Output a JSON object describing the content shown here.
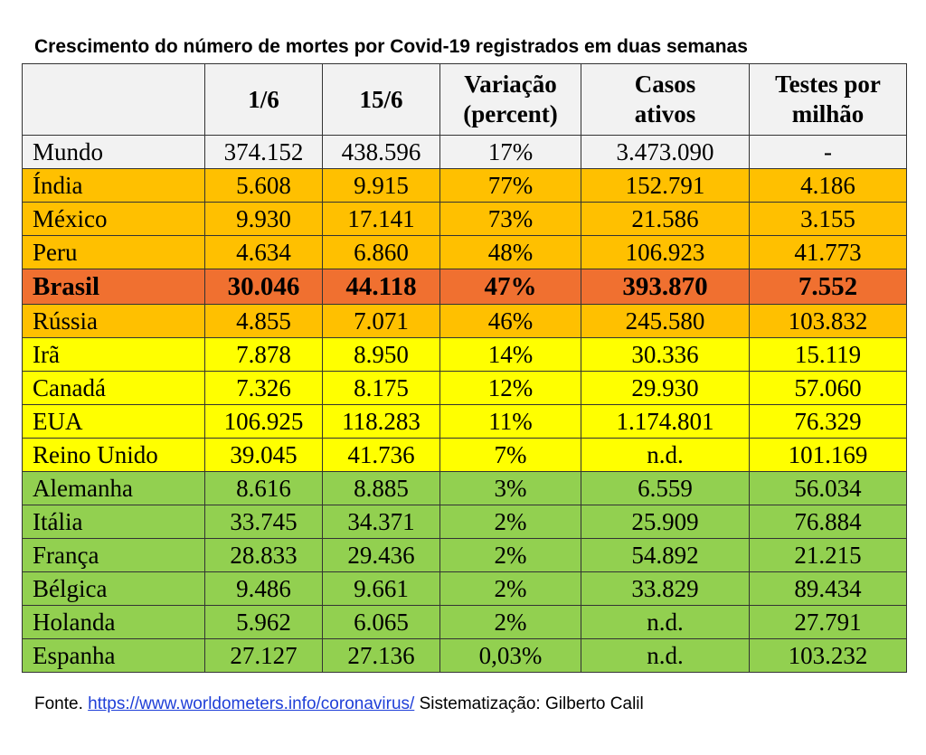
{
  "title": "Crescimento do número de mortes por Covid-19 registrados em duas semanas",
  "colors": {
    "header": "#f2f2f2",
    "world": "#f2f2f2",
    "orange": "#ffc000",
    "highlight": "#f07030",
    "yellow": "#ffff00",
    "green": "#92d050"
  },
  "header": {
    "country": "",
    "d1": "1/6",
    "d15": "15/6",
    "var_line1": "Variação",
    "var_line2": "(percent)",
    "cases_line1": "Casos",
    "cases_line2": "ativos",
    "tests_line1": "Testes por",
    "tests_line2": "milhão"
  },
  "rows": [
    {
      "country": "Mundo",
      "d1": "374.152",
      "d15": "438.596",
      "var": "17%",
      "cases": "3.473.090",
      "tests": "-",
      "color": "world",
      "bold": false
    },
    {
      "country": "Índia",
      "d1": "5.608",
      "d15": "9.915",
      "var": "77%",
      "cases": "152.791",
      "tests": "4.186",
      "color": "orange",
      "bold": false
    },
    {
      "country": "México",
      "d1": "9.930",
      "d15": "17.141",
      "var": "73%",
      "cases": "21.586",
      "tests": "3.155",
      "color": "orange",
      "bold": false
    },
    {
      "country": "Peru",
      "d1": "4.634",
      "d15": "6.860",
      "var": "48%",
      "cases": "106.923",
      "tests": "41.773",
      "color": "orange",
      "bold": false
    },
    {
      "country": "Brasil",
      "d1": "30.046",
      "d15": "44.118",
      "var": "47%",
      "cases": "393.870",
      "tests": "7.552",
      "color": "highlight",
      "bold": true
    },
    {
      "country": "Rússia",
      "d1": "4.855",
      "d15": "7.071",
      "var": "46%",
      "cases": "245.580",
      "tests": "103.832",
      "color": "orange",
      "bold": false
    },
    {
      "country": "Irã",
      "d1": "7.878",
      "d15": "8.950",
      "var": "14%",
      "cases": "30.336",
      "tests": "15.119",
      "color": "yellow",
      "bold": false
    },
    {
      "country": "Canadá",
      "d1": "7.326",
      "d15": "8.175",
      "var": "12%",
      "cases": "29.930",
      "tests": "57.060",
      "color": "yellow",
      "bold": false
    },
    {
      "country": "EUA",
      "d1": "106.925",
      "d15": "118.283",
      "var": "11%",
      "cases": "1.174.801",
      "tests": "76.329",
      "color": "yellow",
      "bold": false
    },
    {
      "country": "Reino Unido",
      "d1": "39.045",
      "d15": "41.736",
      "var": "7%",
      "cases": "n.d.",
      "tests": "101.169",
      "color": "yellow",
      "bold": false
    },
    {
      "country": "Alemanha",
      "d1": "8.616",
      "d15": "8.885",
      "var": "3%",
      "cases": "6.559",
      "tests": "56.034",
      "color": "green",
      "bold": false
    },
    {
      "country": "Itália",
      "d1": "33.745",
      "d15": "34.371",
      "var": "2%",
      "cases": "25.909",
      "tests": "76.884",
      "color": "green",
      "bold": false
    },
    {
      "country": "França",
      "d1": "28.833",
      "d15": "29.436",
      "var": "2%",
      "cases": "54.892",
      "tests": "21.215",
      "color": "green",
      "bold": false
    },
    {
      "country": "Bélgica",
      "d1": "9.486",
      "d15": "9.661",
      "var": "2%",
      "cases": "33.829",
      "tests": "89.434",
      "color": "green",
      "bold": false
    },
    {
      "country": "Holanda",
      "d1": "5.962",
      "d15": "6.065",
      "var": "2%",
      "cases": "n.d.",
      "tests": "27.791",
      "color": "green",
      "bold": false
    },
    {
      "country": "Espanha",
      "d1": "27.127",
      "d15": "27.136",
      "var": "0,03%",
      "cases": "n.d.",
      "tests": "103.232",
      "color": "green",
      "bold": false
    }
  ],
  "footer": {
    "prefix": "Fonte. ",
    "link_text": "https://www.worldometers.info/coronavirus/",
    "suffix": " Sistematização: Gilberto Calil"
  }
}
